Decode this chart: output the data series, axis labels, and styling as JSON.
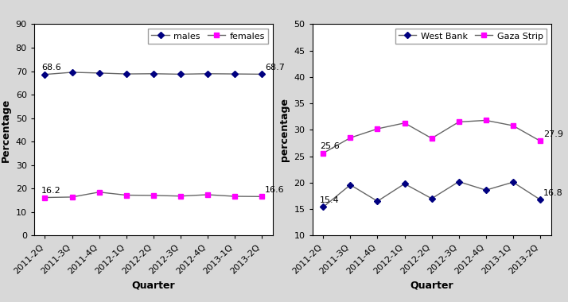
{
  "quarters": [
    "2011-2Q",
    "2011-3Q",
    "2011-4Q",
    "2012-1Q",
    "2012-2Q",
    "2012-3Q",
    "2012-4Q",
    "2013-1Q",
    "2013-2Q"
  ],
  "left": {
    "males": [
      68.6,
      69.5,
      69.2,
      68.8,
      68.9,
      68.7,
      68.9,
      68.8,
      68.7
    ],
    "females": [
      16.2,
      16.4,
      18.5,
      17.2,
      17.1,
      16.8,
      17.4,
      16.7,
      16.6
    ],
    "ylabel": "Percentage",
    "xlabel": "Quarter",
    "ylim": [
      0,
      90
    ],
    "yticks": [
      0,
      10,
      20,
      30,
      40,
      50,
      60,
      70,
      80,
      90
    ],
    "legend": [
      "males",
      "females"
    ],
    "annot_first_male": "68.6",
    "annot_last_male": "68.7",
    "annot_first_female": "16.2",
    "annot_last_female": "16.6"
  },
  "right": {
    "west_bank": [
      15.4,
      19.6,
      16.5,
      19.8,
      17.0,
      20.2,
      18.6,
      20.1,
      16.8
    ],
    "gaza_strip": [
      25.6,
      28.5,
      30.2,
      31.3,
      28.4,
      31.5,
      31.8,
      30.8,
      27.9
    ],
    "ylabel": "percentage",
    "xlabel": "Quarter",
    "ylim": [
      10,
      50
    ],
    "yticks": [
      10,
      15,
      20,
      25,
      30,
      35,
      40,
      45,
      50
    ],
    "legend": [
      "West Bank",
      "Gaza Strip"
    ],
    "annot_first_wb": "15.4",
    "annot_last_wb": "16.8",
    "annot_first_gs": "25.6",
    "annot_last_gs": "27.9"
  },
  "male_color": "#000080",
  "female_color": "#FF00FF",
  "male_marker": "D",
  "female_marker": "s",
  "wb_color": "#000080",
  "gs_color": "#FF00FF",
  "wb_marker": "D",
  "gs_marker": "s",
  "line_color": "#666666",
  "bg_color": "#FFFFFF",
  "panel_bg": "#FFFFFF",
  "outer_bg": "#D8D8D8",
  "font_size": 8,
  "label_fontsize": 9,
  "annot_fontsize": 8
}
